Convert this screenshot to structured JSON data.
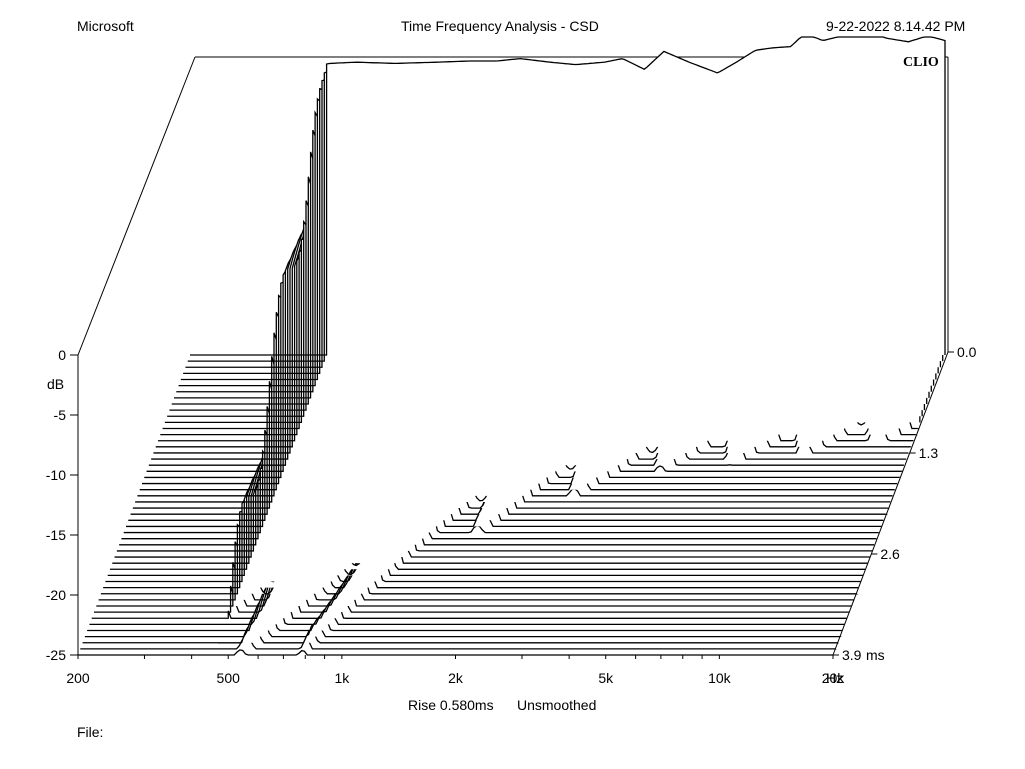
{
  "header": {
    "left": "Microsoft",
    "center": "Time Frequency Analysis - CSD",
    "right": "9-22-2022 8.14.42 PM"
  },
  "brand": "CLIO",
  "chart_data": {
    "type": "waterfall",
    "x_axis": {
      "scale": "log",
      "range": [
        200,
        20000
      ],
      "tick_labels": [
        "200",
        "500",
        "1k",
        "2k",
        "5k",
        "10k",
        "20k"
      ],
      "tick_values": [
        200,
        500,
        1000,
        2000,
        5000,
        10000,
        20000
      ],
      "unit": "Hz"
    },
    "y_axis": {
      "range": [
        -25,
        0
      ],
      "tick_labels": [
        "0",
        "-5",
        "-10",
        "-15",
        "-20",
        "-25"
      ],
      "tick_values": [
        0,
        -5,
        -10,
        -15,
        -20,
        -25
      ],
      "label": "dB"
    },
    "z_axis": {
      "range": [
        0,
        3.9
      ],
      "tick_labels": [
        "0.0",
        "1.3",
        "2.6",
        "3.9"
      ],
      "tick_values": [
        0,
        1.3,
        2.6,
        3.9
      ],
      "unit": "ms"
    },
    "slices": 50,
    "initial_response": {
      "freq": [
        450,
        470,
        550,
        700,
        900,
        1100,
        1300,
        1500,
        1800,
        2100,
        2500,
        2800,
        3200,
        3600,
        4200,
        5000,
        5600,
        6300,
        7000,
        7800,
        8500,
        9500,
        11000,
        12500,
        14000,
        16000,
        18000,
        20000
      ],
      "db": [
        -0.8,
        -0.7,
        -0.6,
        -0.7,
        -0.6,
        -0.5,
        -0.5,
        -0.3,
        -0.6,
        -0.8,
        -0.6,
        -0.3,
        -1.2,
        0.3,
        -0.6,
        -1.5,
        -0.6,
        0.4,
        0.6,
        0.7,
        1.8,
        1.2,
        1.7,
        2.0,
        1.4,
        1.1,
        1.6,
        1.2
      ]
    },
    "footer": {
      "rise": "Rise 0.580ms",
      "smoothing": "Unsmoothed",
      "file_label": "File:"
    }
  }
}
